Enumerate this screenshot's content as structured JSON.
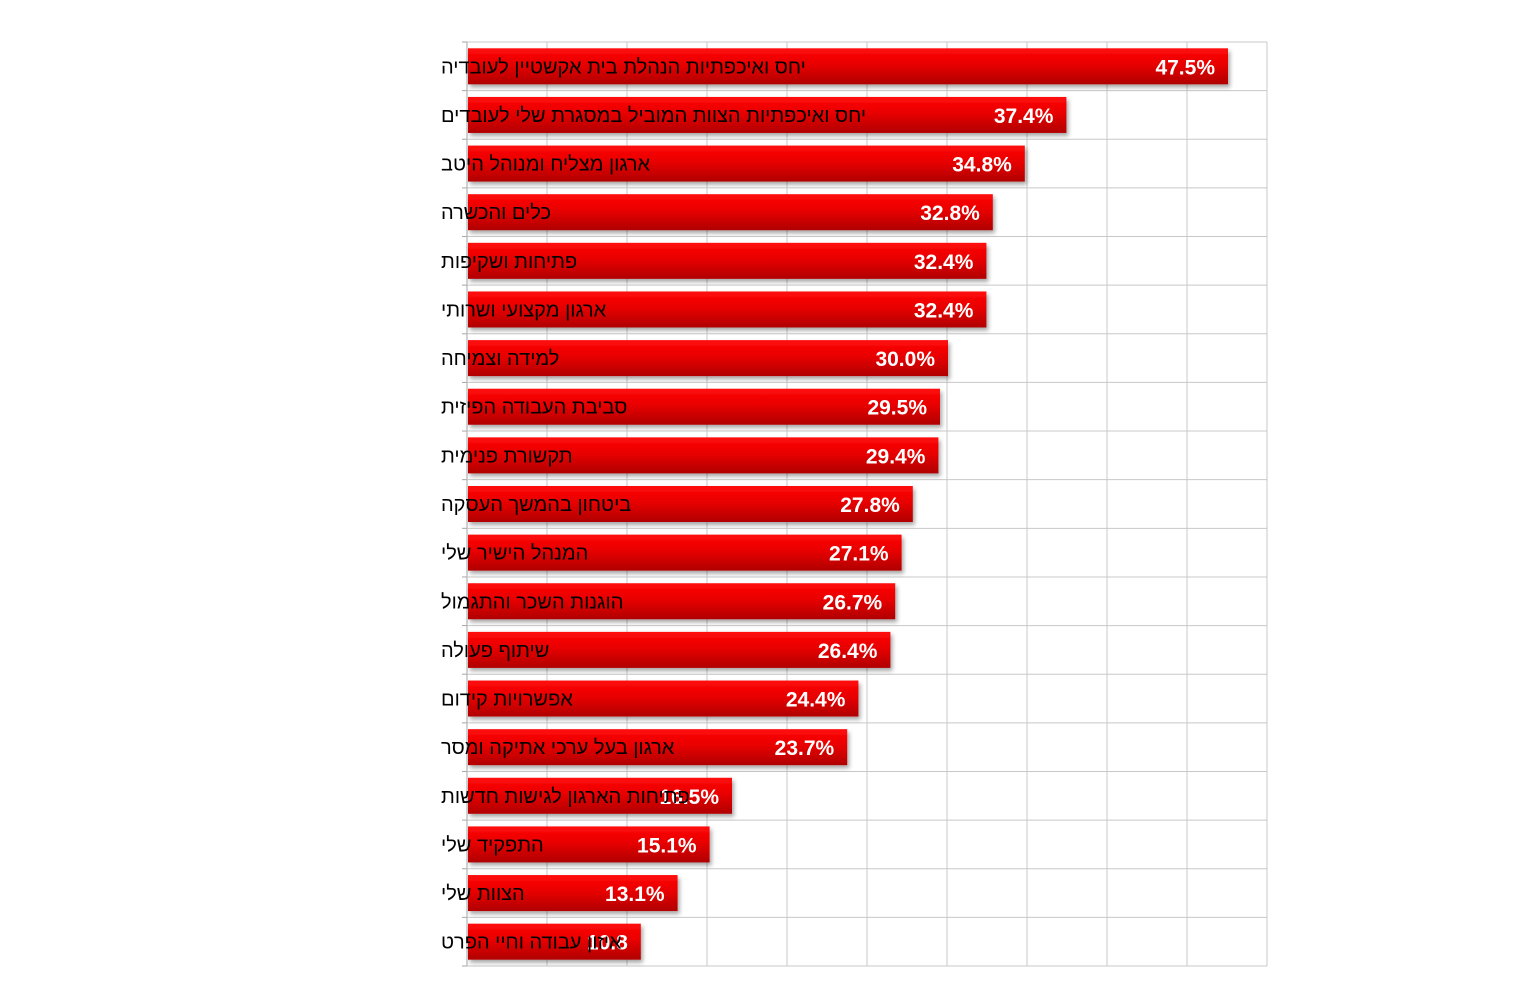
{
  "chart_data": {
    "type": "bar",
    "orientation": "horizontal",
    "categories": [
      "יחס ואיכפתיות הנהלת בית אקשטיין לעובדיה",
      "יחס ואיכפתיות הצוות המוביל במסגרת שלי לעובדים",
      "ארגון מצליח ומנוהל היטב",
      "כלים והכשרה",
      "פתיחות ושקיפות",
      "ארגון מקצועי ושרותי",
      "למידה וצמיחה",
      "סביבת העבודה הפיזית",
      "תקשורת פנימית",
      "ביטחון בהמשך העסקה",
      "המנהל הישיר שלי",
      "הוגנות השכר והתגמול",
      "שיתוף פעולה",
      "אפשרויות קידום",
      "ארגון בעל ערכי אתיקה ומסר",
      "פתיחות הארגון לגישות חדשות",
      "התפקיד שלי",
      "הצוות שלי",
      "איזון עבודה וחיי הפרט"
    ],
    "values": [
      47.5,
      37.4,
      34.8,
      32.8,
      32.4,
      32.4,
      30.0,
      29.5,
      29.4,
      27.8,
      27.1,
      26.7,
      26.4,
      24.4,
      23.7,
      16.5,
      15.1,
      13.1,
      10.8
    ],
    "value_labels": [
      "47.5%",
      "37.4%",
      "34.8%",
      "32.8%",
      "32.4%",
      "32.4%",
      "30.0%",
      "29.5%",
      "29.4%",
      "27.8%",
      "27.1%",
      "26.7%",
      "26.4%",
      "24.4%",
      "23.7%",
      "16.5%",
      "15.1%",
      "13.1%",
      "10.8"
    ],
    "xlim": [
      0,
      50
    ],
    "grid_step": 5,
    "grid": true,
    "legend": "none",
    "colors": {
      "bar_top": "#ff0a0a",
      "bar_bottom": "#b00000",
      "grid": "#c8c8c8",
      "axis": "#a6a6a6"
    }
  }
}
